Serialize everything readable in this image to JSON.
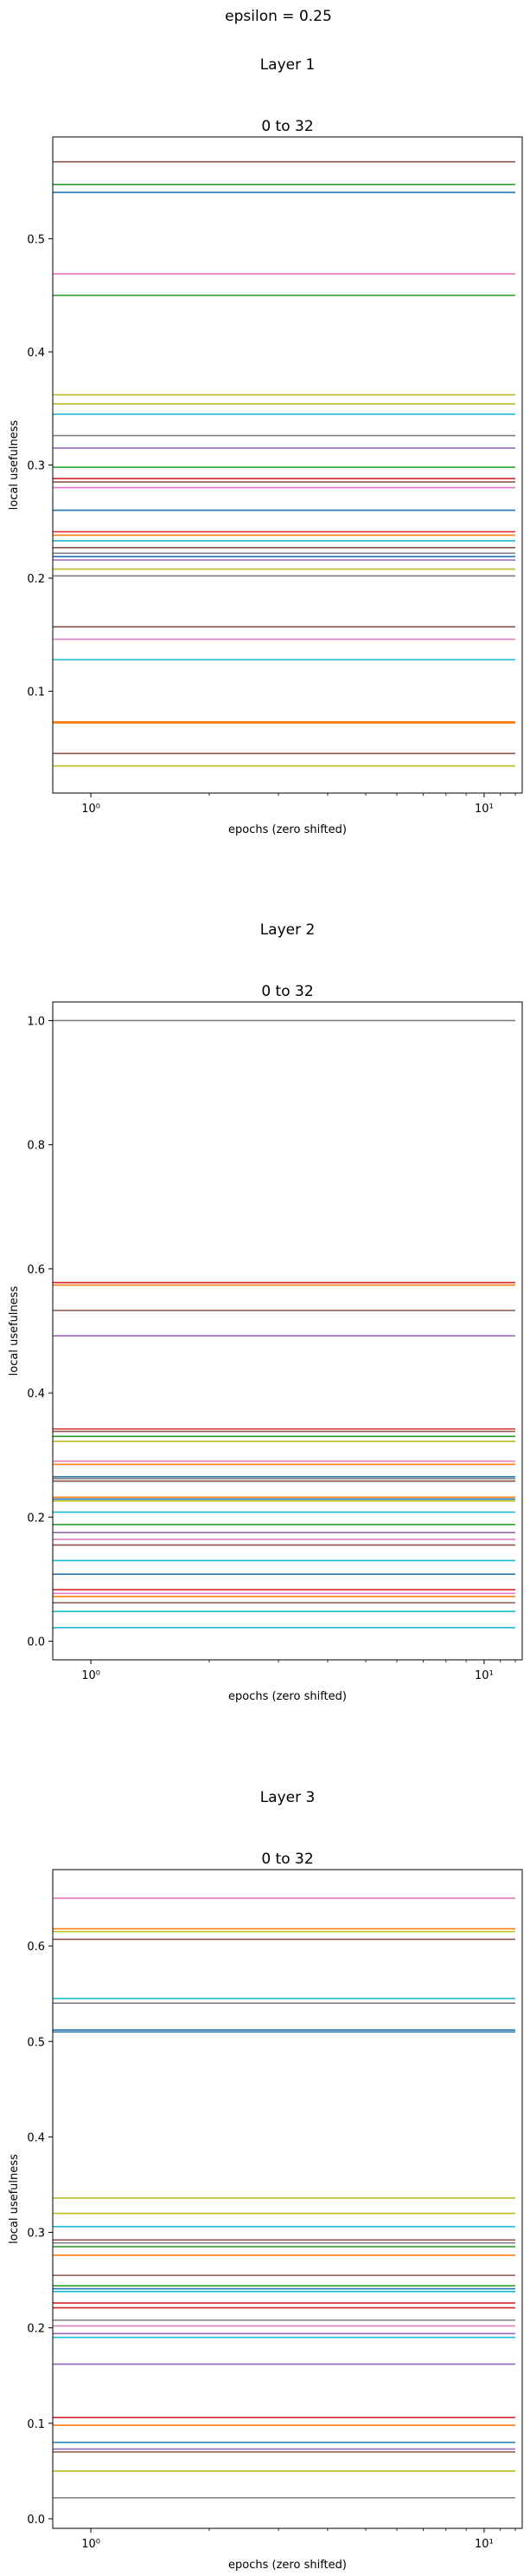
{
  "figure": {
    "suptitle": "epsilon = 0.25"
  },
  "colors": [
    "#1f77b4",
    "#ff7f0e",
    "#2ca02c",
    "#d62728",
    "#9467bd",
    "#8c564b",
    "#e377c2",
    "#7f7f7f",
    "#bcbd22",
    "#17becf"
  ],
  "chart_data": [
    {
      "type": "line",
      "layer_title": "Layer 1",
      "title": "0 to 32",
      "xlabel": "epochs (zero shifted)",
      "ylabel": "local usefulness",
      "x_scale": "log",
      "x": [
        0.8,
        12
      ],
      "xlim": [
        0.8,
        12.5
      ],
      "xticks": [
        {
          "value": 1,
          "label": "10⁰"
        },
        {
          "value": 10,
          "label": "10¹"
        }
      ],
      "ylim": [
        0.01,
        0.59
      ],
      "yticks": [
        0.1,
        0.2,
        0.3,
        0.4,
        0.5
      ],
      "grid": false,
      "series_values": [
        0.568,
        0.548,
        0.541,
        0.469,
        0.45,
        0.362,
        0.354,
        0.345,
        0.326,
        0.315,
        0.298,
        0.288,
        0.285,
        0.28,
        0.26,
        0.241,
        0.238,
        0.233,
        0.227,
        0.222,
        0.219,
        0.216,
        0.208,
        0.202,
        0.157,
        0.146,
        0.128,
        0.073,
        0.072,
        0.045,
        0.034
      ],
      "series_colors": [
        "#8c564b",
        "#2ca02c",
        "#1f77b4",
        "#e377c2",
        "#2ca02c",
        "#bcbd22",
        "#bcbd22",
        "#17becf",
        "#7f7f7f",
        "#9467bd",
        "#2ca02c",
        "#d62728",
        "#8c564b",
        "#e377c2",
        "#1f77b4",
        "#d62728",
        "#ff7f0e",
        "#17becf",
        "#8c564b",
        "#7f7f7f",
        "#1f77b4",
        "#9467bd",
        "#bcbd22",
        "#7f7f7f",
        "#8c564b",
        "#e377c2",
        "#17becf",
        "#ff7f0e",
        "#ff7f0e",
        "#8c564b",
        "#bcbd22"
      ]
    },
    {
      "type": "line",
      "layer_title": "Layer 2",
      "title": "0 to 32",
      "xlabel": "epochs (zero shifted)",
      "ylabel": "local usefulness",
      "x_scale": "log",
      "x": [
        0.8,
        12
      ],
      "xlim": [
        0.8,
        12.5
      ],
      "xticks": [
        {
          "value": 1,
          "label": "10⁰"
        },
        {
          "value": 10,
          "label": "10¹"
        }
      ],
      "ylim": [
        -0.03,
        1.03
      ],
      "yticks": [
        0.0,
        0.2,
        0.4,
        0.6,
        0.8,
        1.0
      ],
      "grid": false,
      "series_values": [
        1.0,
        0.578,
        0.574,
        0.533,
        0.492,
        0.342,
        0.338,
        0.33,
        0.322,
        0.29,
        0.285,
        0.265,
        0.262,
        0.258,
        0.232,
        0.229,
        0.226,
        0.208,
        0.188,
        0.175,
        0.164,
        0.155,
        0.13,
        0.108,
        0.083,
        0.077,
        0.072,
        0.062,
        0.048,
        0.022
      ],
      "series_colors": [
        "#7f7f7f",
        "#d62728",
        "#ff7f0e",
        "#8c564b",
        "#9467bd",
        "#d62728",
        "#8c564b",
        "#2ca02c",
        "#bcbd22",
        "#e377c2",
        "#ff7f0e",
        "#1f77b4",
        "#7f7f7f",
        "#8c564b",
        "#ff7f0e",
        "#1f77b4",
        "#bcbd22",
        "#17becf",
        "#2ca02c",
        "#9467bd",
        "#e377c2",
        "#8c564b",
        "#17becf",
        "#1f77b4",
        "#d62728",
        "#e377c2",
        "#ff7f0e",
        "#8c564b",
        "#17becf",
        "#17becf"
      ]
    },
    {
      "type": "line",
      "layer_title": "Layer 3",
      "title": "0 to 32",
      "xlabel": "epochs (zero shifted)",
      "ylabel": "local usefulness",
      "x_scale": "log",
      "x": [
        0.8,
        12
      ],
      "xlim": [
        0.8,
        12.5
      ],
      "xticks": [
        {
          "value": 1,
          "label": "10⁰"
        },
        {
          "value": 10,
          "label": "10¹"
        }
      ],
      "ylim": [
        -0.01,
        0.68
      ],
      "yticks": [
        0.0,
        0.1,
        0.2,
        0.3,
        0.4,
        0.5,
        0.6
      ],
      "grid": false,
      "series_values": [
        0.65,
        0.618,
        0.615,
        0.607,
        0.545,
        0.54,
        0.512,
        0.51,
        0.336,
        0.32,
        0.306,
        0.292,
        0.289,
        0.285,
        0.276,
        0.255,
        0.244,
        0.241,
        0.238,
        0.226,
        0.221,
        0.208,
        0.202,
        0.194,
        0.19,
        0.162,
        0.106,
        0.098,
        0.08,
        0.073,
        0.07,
        0.05,
        0.022
      ],
      "series_colors": [
        "#e377c2",
        "#ff7f0e",
        "#bcbd22",
        "#8c564b",
        "#17becf",
        "#7f7f7f",
        "#1f77b4",
        "#1f77b4",
        "#bcbd22",
        "#bcbd22",
        "#17becf",
        "#8c564b",
        "#7f7f7f",
        "#2ca02c",
        "#ff7f0e",
        "#8c564b",
        "#2ca02c",
        "#1f77b4",
        "#17becf",
        "#d62728",
        "#d62728",
        "#7f7f7f",
        "#e377c2",
        "#9467bd",
        "#17becf",
        "#9467bd",
        "#d62728",
        "#ff7f0e",
        "#1f77b4",
        "#9467bd",
        "#8c564b",
        "#bcbd22",
        "#7f7f7f"
      ]
    }
  ]
}
